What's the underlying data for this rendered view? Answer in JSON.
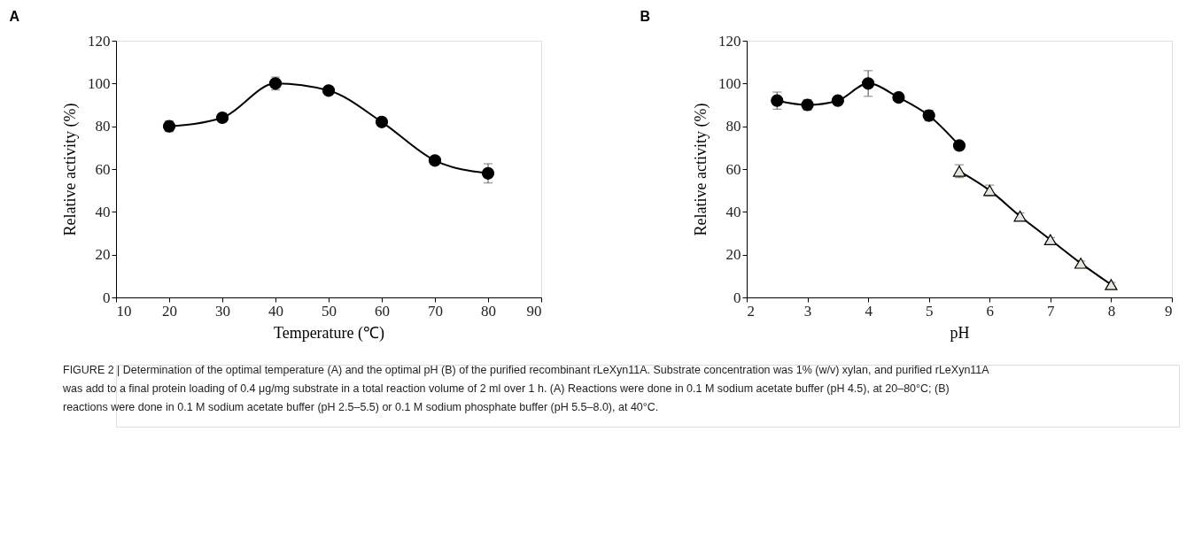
{
  "chart_data": [
    {
      "type": "line",
      "title": "A",
      "xlabel": "Temperature (℃)",
      "ylabel": "Relative activity (%)",
      "x": [
        20,
        30,
        40,
        50,
        60,
        70,
        80
      ],
      "series": [
        {
          "color": "#000000",
          "marker": "circle",
          "values": [
            80,
            84,
            100,
            96.7,
            82,
            64,
            58
          ],
          "errors": [
            2.5,
            1,
            3,
            1,
            1,
            1,
            4.5
          ]
        }
      ],
      "xlim": [
        10,
        90
      ],
      "xticks": [
        10,
        20,
        30,
        40,
        50,
        60,
        70,
        80,
        90
      ],
      "ylim": [
        0,
        120
      ],
      "yticks": [
        0,
        20,
        40,
        60,
        80,
        100,
        120
      ],
      "grid": false
    },
    {
      "type": "line",
      "title": "B",
      "xlabel": "pH",
      "ylabel": "Relative activity (%)",
      "series": [
        {
          "color": "#000000",
          "marker": "circle",
          "x": [
            2.5,
            3,
            3.5,
            4,
            4.5,
            5,
            5.5
          ],
          "values": [
            92,
            90,
            92,
            100,
            93.5,
            85,
            71
          ],
          "errors": [
            4,
            2.5,
            1,
            6,
            1,
            2.5,
            1
          ]
        },
        {
          "color": "#e6e6dc",
          "marker": "triangle",
          "x": [
            5.5,
            6,
            6.5,
            7,
            7.5,
            8
          ],
          "values": [
            59,
            50,
            38,
            27,
            16,
            6
          ],
          "errors": [
            3,
            2.5,
            1.5,
            1,
            1,
            1
          ]
        }
      ],
      "xlim": [
        2,
        9
      ],
      "xticks": [
        2,
        3,
        4,
        5,
        6,
        7,
        8,
        9
      ],
      "ylim": [
        0,
        120
      ],
      "yticks": [
        0,
        20,
        40,
        60,
        80,
        100,
        120
      ],
      "grid": false,
      "annotations": [
        "FIGURE 2 | Determination of the optimal temperature (A) and the optimal pH (B) of the purified recombinant rLeXyn11A. Substrate concentration was 1% (w/v) xylan, and purified rLeXyn11A was add to a final protein loading of 0.4 μg/mg substrate in a total reaction volume of 2 ml over 1 h. (A) Reactions were done in 0.1 M sodium acetate buffer (pH 4.5), at 20–80°C; (B) reactions were done in 0.1 M sodium acetate buffer (pH 2.5–5.5) or 0.1 M sodium phosphate buffer (pH 5.5–8.0), at 40°C."
      ]
    }
  ]
}
